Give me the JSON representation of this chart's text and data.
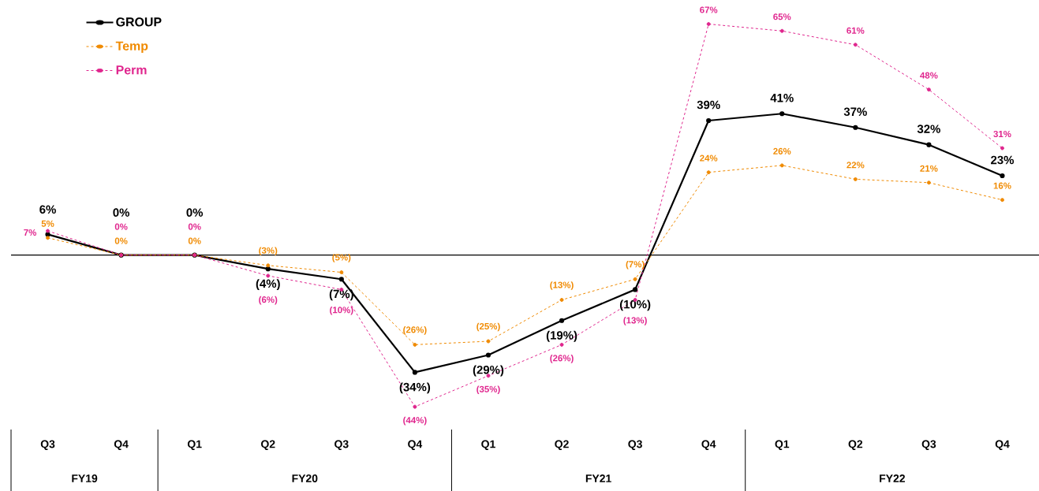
{
  "chart_data": {
    "type": "line",
    "categories": [
      "Q3",
      "Q4",
      "Q1",
      "Q2",
      "Q3",
      "Q4",
      "Q1",
      "Q2",
      "Q3",
      "Q4",
      "Q1",
      "Q2",
      "Q3",
      "Q4"
    ],
    "series": [
      {
        "name": "GROUP",
        "color": "#000000",
        "line_style": "solid",
        "values": [
          6,
          0,
          0,
          -4,
          -7,
          -34,
          -29,
          -19,
          -10,
          39,
          41,
          37,
          32,
          23
        ],
        "value_labels": [
          "6%",
          "0%",
          "0%",
          "(4%)",
          "(7%)",
          "(34%)",
          "(29%)",
          "(19%)",
          "(10%)",
          "39%",
          "41%",
          "37%",
          "32%",
          "23%"
        ]
      },
      {
        "name": "Temp",
        "color": "#f08a00",
        "line_style": "dashed",
        "values": [
          5,
          0,
          0,
          -3,
          -5,
          -26,
          -25,
          -13,
          -7,
          24,
          26,
          22,
          21,
          16
        ],
        "value_labels": [
          "5%",
          "0%",
          "0%",
          "(3%)",
          "(5%)",
          "(26%)",
          "(25%)",
          "(13%)",
          "(7%)",
          "24%",
          "26%",
          "22%",
          "21%",
          "16%"
        ]
      },
      {
        "name": "Perm",
        "color": "#e0268e",
        "line_style": "dashed",
        "values": [
          7,
          0,
          0,
          -6,
          -10,
          -44,
          -35,
          -26,
          -13,
          67,
          65,
          61,
          48,
          31
        ],
        "value_labels": [
          "7%",
          "0%",
          "0%",
          "(6%)",
          "(10%)",
          "(44%)",
          "(35%)",
          "(26%)",
          "(13%)",
          "67%",
          "65%",
          "61%",
          "48%",
          "31%"
        ]
      }
    ],
    "ref_lines": [
      {
        "axis": "y",
        "value": 0,
        "color": "#000000"
      }
    ],
    "annotations": [
      "FY19",
      "FY20",
      "FY21",
      "FY22"
    ],
    "marker": "circle",
    "legend": "top left"
  }
}
